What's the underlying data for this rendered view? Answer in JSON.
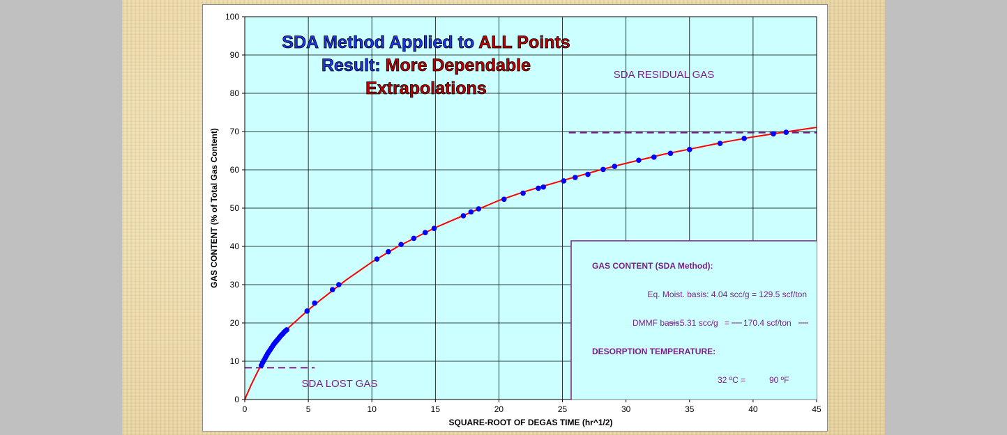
{
  "colors": {
    "plot_background": "#ccffff",
    "curve": "#ff0000",
    "points": "#0000ff",
    "annotation": "#7b1f86",
    "title_blue": "#1f35e6",
    "title_red": "#c00000"
  },
  "title_lines": [
    [
      {
        "text": "SDA Method Applied to ",
        "color": "blue"
      },
      {
        "text": "ALL Points",
        "color": "red"
      }
    ],
    [
      {
        "text": "Result:  ",
        "color": "blue"
      },
      {
        "text": "More Dependable",
        "color": "red"
      }
    ],
    [
      {
        "text": "Extrapolations",
        "color": "red"
      }
    ]
  ],
  "chart_data": {
    "type": "scatter",
    "xlabel": "SQUARE-ROOT OF DEGAS TIME (hr^1/2)",
    "ylabel": "GAS CONTENT (% of Total Gas Content)",
    "xlim": [
      0,
      45
    ],
    "ylim": [
      0,
      100
    ],
    "xticks": [
      0,
      5,
      10,
      15,
      20,
      25,
      30,
      35,
      40,
      45
    ],
    "yticks": [
      0,
      10,
      20,
      30,
      40,
      50,
      60,
      70,
      80,
      90,
      100
    ],
    "grid": true,
    "series": [
      {
        "kind": "points",
        "values": [
          [
            1.3,
            8.9
          ],
          [
            1.4,
            9.6
          ],
          [
            1.5,
            10.2
          ],
          [
            1.6,
            10.8
          ],
          [
            1.7,
            11.4
          ],
          [
            1.8,
            12.0
          ],
          [
            1.9,
            12.5
          ],
          [
            2.0,
            13.0
          ],
          [
            2.1,
            13.5
          ],
          [
            2.2,
            14.0
          ],
          [
            2.3,
            14.5
          ],
          [
            2.4,
            14.9
          ],
          [
            2.5,
            15.3
          ],
          [
            2.6,
            15.7
          ],
          [
            2.7,
            16.1
          ],
          [
            2.8,
            16.5
          ],
          [
            2.9,
            16.9
          ],
          [
            3.0,
            17.2
          ],
          [
            3.1,
            17.6
          ],
          [
            3.2,
            17.9
          ],
          [
            3.3,
            18.2
          ],
          [
            4.9,
            23.1
          ],
          [
            5.5,
            25.2
          ],
          [
            6.9,
            28.7
          ],
          [
            7.4,
            30.0
          ],
          [
            10.4,
            36.7
          ],
          [
            11.3,
            38.6
          ],
          [
            12.3,
            40.5
          ],
          [
            13.3,
            42.1
          ],
          [
            14.2,
            43.6
          ],
          [
            14.9,
            44.7
          ],
          [
            17.2,
            48.0
          ],
          [
            17.8,
            49.0
          ],
          [
            18.4,
            49.8
          ],
          [
            20.4,
            52.3
          ],
          [
            21.9,
            53.9
          ],
          [
            23.1,
            55.2
          ],
          [
            23.5,
            55.5
          ],
          [
            25.1,
            57.1
          ],
          [
            26.0,
            58.0
          ],
          [
            27.0,
            58.8
          ],
          [
            28.2,
            60.1
          ],
          [
            29.1,
            60.9
          ],
          [
            31.0,
            62.5
          ],
          [
            32.2,
            63.3
          ],
          [
            33.5,
            64.3
          ],
          [
            35.0,
            65.3
          ],
          [
            37.4,
            66.9
          ],
          [
            39.3,
            68.2
          ],
          [
            41.6,
            69.4
          ],
          [
            42.6,
            69.8
          ]
        ]
      },
      {
        "kind": "fitted-curve",
        "values": [
          [
            0,
            0
          ],
          [
            0.5,
            3.8
          ],
          [
            1,
            7.2
          ],
          [
            1.5,
            10.2
          ],
          [
            2,
            13.0
          ],
          [
            3,
            17.4
          ],
          [
            4,
            20.4
          ],
          [
            5,
            23.4
          ],
          [
            6,
            26.1
          ],
          [
            8,
            31.3
          ],
          [
            10,
            35.9
          ],
          [
            12,
            39.9
          ],
          [
            15,
            44.9
          ],
          [
            18,
            49.2
          ],
          [
            20,
            52.0
          ],
          [
            22,
            54.3
          ],
          [
            25,
            57.2
          ],
          [
            28,
            60.0
          ],
          [
            30,
            61.7
          ],
          [
            33,
            64.1
          ],
          [
            35,
            65.4
          ],
          [
            38,
            67.4
          ],
          [
            40,
            68.6
          ],
          [
            42.6,
            69.9
          ],
          [
            45,
            71.1
          ]
        ]
      }
    ],
    "reference_lines": [
      {
        "name": "lost-gas",
        "y": 8.3,
        "x_range": [
          0,
          5.5
        ]
      },
      {
        "name": "residual-gas",
        "y": 69.7,
        "x_range": [
          25.5,
          45
        ]
      }
    ]
  },
  "annotations": {
    "residual_gas": "SDA  RESIDUAL GAS",
    "lost_gas": "SDA LOST GAS"
  },
  "info_box": {
    "heading": "GAS CONTENT (SDA Method):",
    "row1": "Eq. Moist. basis:  4.04 scc/g  =   129.5 scf/ton",
    "row2_label": "DMMF basis:",
    "row2_value1": "5.31 scc/g",
    "row2_eq": "=",
    "row2_value2": "170.4 scf/ton",
    "temp_heading": "DESORPTION TEMPERATURE:",
    "temp_c": "32 ºC  =",
    "temp_f": "90 ºF"
  }
}
